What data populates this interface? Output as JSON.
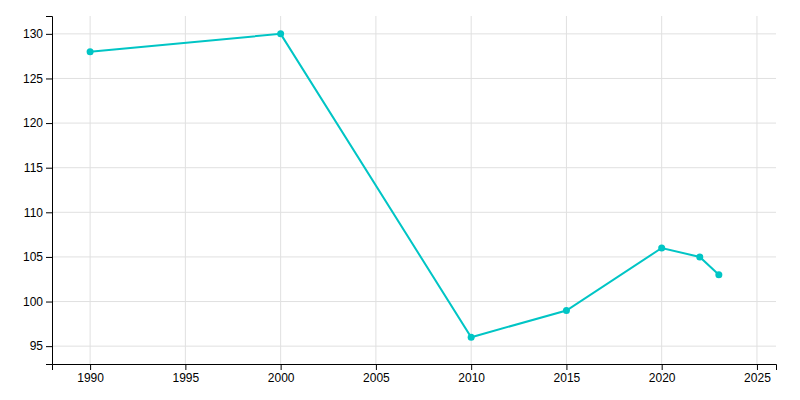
{
  "chart_data": {
    "type": "line",
    "x": [
      1990,
      2000,
      2010,
      2015,
      2020,
      2022,
      2023
    ],
    "values": [
      128,
      130,
      96,
      99,
      106,
      105,
      103
    ],
    "color": "#00C5C5",
    "marker": "circle",
    "xlim": [
      1988,
      2026
    ],
    "ylim": [
      93,
      132
    ],
    "xticks": [
      1990,
      1995,
      2000,
      2005,
      2010,
      2015,
      2020,
      2025
    ],
    "yticks": [
      95,
      100,
      105,
      110,
      115,
      120,
      125,
      130
    ],
    "grid": true
  }
}
